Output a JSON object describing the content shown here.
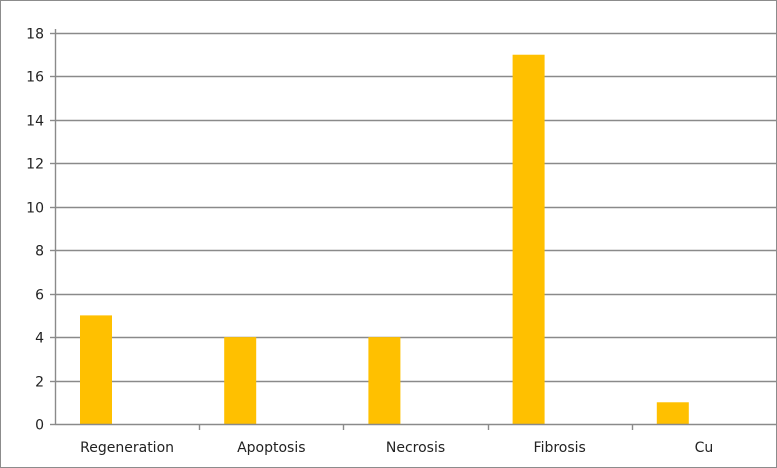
{
  "chart_data": {
    "type": "bar",
    "categories": [
      "Regeneration",
      "Apoptosis",
      "Necrosis",
      "Fibrosis",
      "Cu"
    ],
    "series": [
      {
        "values": [
          5,
          4,
          4,
          17,
          1
        ]
      }
    ],
    "yticks": [
      "0",
      "2",
      "4",
      "6",
      "8",
      "10",
      "12",
      "14",
      "16",
      "18"
    ],
    "ylim": [
      0,
      18
    ],
    "grid": true,
    "legend": "none",
    "bar_color": "#ffc000",
    "grid_color": "#8a8a8a",
    "axis_color": "#8a8a8a"
  }
}
